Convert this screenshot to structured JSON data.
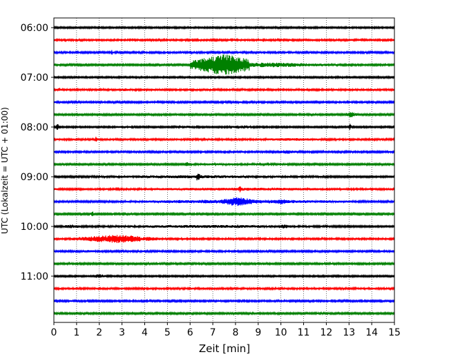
{
  "chart_data": {
    "type": "line",
    "xlabel": "Zeit  [min]",
    "ylabel": "UTC (Lokalzeit = UTC + 01:00)",
    "xlim": [
      0,
      15
    ],
    "x_ticks": [
      "0",
      "1",
      "2",
      "3",
      "4",
      "5",
      "6",
      "7",
      "8",
      "9",
      "10",
      "11",
      "12",
      "13",
      "14",
      "15"
    ],
    "y_tick_labels": [
      "06:00",
      "07:00",
      "08:00",
      "09:00",
      "10:00",
      "11:00"
    ],
    "grid": "vertical dotted lines at each minute",
    "trace_colors": [
      "#000000",
      "#ff0000",
      "#0000ff",
      "#008000"
    ],
    "rows": [
      {
        "start": "06:00",
        "color": "black"
      },
      {
        "start": "06:15",
        "color": "red"
      },
      {
        "start": "06:30",
        "color": "blue"
      },
      {
        "start": "06:45",
        "color": "green",
        "event": "large earthquake signal from ~6.0 to ~8.5 min, peak near 7.5 min"
      },
      {
        "start": "07:00",
        "color": "black"
      },
      {
        "start": "07:15",
        "color": "red"
      },
      {
        "start": "07:30",
        "color": "blue"
      },
      {
        "start": "07:45",
        "color": "green"
      },
      {
        "start": "08:00",
        "color": "black"
      },
      {
        "start": "08:15",
        "color": "red"
      },
      {
        "start": "08:30",
        "color": "blue"
      },
      {
        "start": "08:45",
        "color": "green"
      },
      {
        "start": "09:00",
        "color": "black"
      },
      {
        "start": "09:15",
        "color": "red"
      },
      {
        "start": "09:30",
        "color": "blue"
      },
      {
        "start": "09:45",
        "color": "green"
      },
      {
        "start": "10:00",
        "color": "black"
      },
      {
        "start": "10:15",
        "color": "red"
      },
      {
        "start": "10:30",
        "color": "blue"
      },
      {
        "start": "10:45",
        "color": "green"
      },
      {
        "start": "11:00",
        "color": "black"
      },
      {
        "start": "11:15",
        "color": "red"
      },
      {
        "start": "11:30",
        "color": "blue"
      },
      {
        "start": "11:45",
        "color": "green"
      }
    ]
  }
}
